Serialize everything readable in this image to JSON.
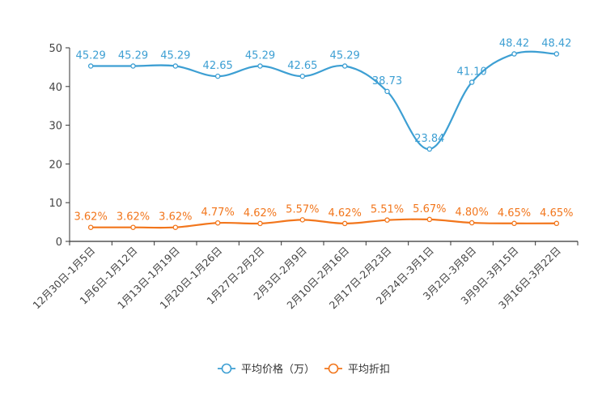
{
  "chart_data": {
    "type": "line",
    "title": "",
    "xlabel": "",
    "ylabel": "",
    "ylim": [
      0,
      50
    ],
    "yticks": [
      0,
      10,
      20,
      30,
      40,
      50
    ],
    "grid": false,
    "legend_position": "bottom-center",
    "categories": [
      "12月30日-1月5日",
      "1月6日-1月12日",
      "1月13日-1月19日",
      "1月20日-1月26日",
      "1月27日-2月2日",
      "2月3日-2月9日",
      "2月10日-2月16日",
      "2月17日-2月23日",
      "2月24日-3月1日",
      "3月2日-3月8日",
      "3月9日-3月15日",
      "3月16日-3月22日"
    ],
    "series": [
      {
        "name": "平均价格（万）",
        "color": "#3d9fd3",
        "values": [
          45.29,
          45.29,
          45.29,
          42.65,
          45.29,
          42.65,
          45.29,
          38.73,
          23.84,
          41.1,
          48.42,
          48.42
        ],
        "labels": [
          "45.29",
          "45.29",
          "45.29",
          "42.65",
          "45.29",
          "42.65",
          "45.29",
          "38.73",
          "23.84",
          "41.10",
          "48.42",
          "48.42"
        ]
      },
      {
        "name": "平均折扣",
        "color": "#f2761c",
        "values": [
          3.62,
          3.62,
          3.62,
          4.77,
          4.62,
          5.57,
          4.62,
          5.51,
          5.67,
          4.8,
          4.65,
          4.65
        ],
        "labels": [
          "3.62%",
          "3.62%",
          "3.62%",
          "4.77%",
          "4.62%",
          "5.57%",
          "4.62%",
          "5.51%",
          "5.67%",
          "4.80%",
          "4.65%",
          "4.65%"
        ]
      }
    ]
  }
}
